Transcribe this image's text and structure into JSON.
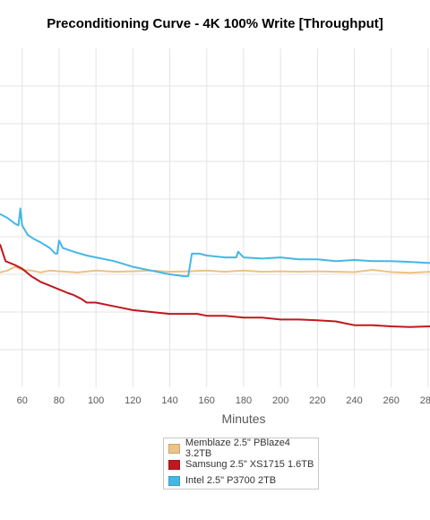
{
  "chart_data": {
    "type": "line",
    "title": "Preconditioning Curve - 4K 100% Write [Throughput]",
    "xlabel": "Minutes",
    "ylabel": "",
    "x_ticks": [
      60,
      80,
      100,
      120,
      140,
      160,
      180,
      200,
      220,
      240,
      260,
      280
    ],
    "xlim": [
      48,
      281
    ],
    "ylim": [
      0,
      9
    ],
    "grid": true,
    "legend_position": "bottom-center",
    "series": [
      {
        "name": "Memblaze 2.5\" PBlaze4 3.2TB",
        "color": "#eec184",
        "points": [
          [
            48,
            3.05
          ],
          [
            52,
            3.1
          ],
          [
            56,
            3.2
          ],
          [
            60,
            3.12
          ],
          [
            65,
            3.1
          ],
          [
            70,
            3.05
          ],
          [
            75,
            3.1
          ],
          [
            80,
            3.08
          ],
          [
            90,
            3.05
          ],
          [
            100,
            3.1
          ],
          [
            110,
            3.07
          ],
          [
            120,
            3.08
          ],
          [
            130,
            3.1
          ],
          [
            140,
            3.07
          ],
          [
            150,
            3.08
          ],
          [
            160,
            3.1
          ],
          [
            170,
            3.07
          ],
          [
            180,
            3.1
          ],
          [
            190,
            3.07
          ],
          [
            200,
            3.08
          ],
          [
            210,
            3.07
          ],
          [
            220,
            3.08
          ],
          [
            230,
            3.07
          ],
          [
            240,
            3.06
          ],
          [
            250,
            3.12
          ],
          [
            260,
            3.06
          ],
          [
            270,
            3.04
          ],
          [
            281,
            3.07
          ]
        ]
      },
      {
        "name": "Samsung 2.5\" XS1715 1.6TB",
        "color": "#c0181e",
        "points": [
          [
            48,
            3.8
          ],
          [
            51,
            3.35
          ],
          [
            56,
            3.25
          ],
          [
            60,
            3.15
          ],
          [
            65,
            2.95
          ],
          [
            70,
            2.8
          ],
          [
            75,
            2.7
          ],
          [
            80,
            2.6
          ],
          [
            85,
            2.5
          ],
          [
            88,
            2.45
          ],
          [
            92,
            2.35
          ],
          [
            95,
            2.25
          ],
          [
            100,
            2.25
          ],
          [
            110,
            2.15
          ],
          [
            120,
            2.05
          ],
          [
            130,
            2.0
          ],
          [
            140,
            1.95
          ],
          [
            150,
            1.95
          ],
          [
            155,
            1.95
          ],
          [
            160,
            1.9
          ],
          [
            170,
            1.9
          ],
          [
            180,
            1.85
          ],
          [
            190,
            1.85
          ],
          [
            200,
            1.8
          ],
          [
            210,
            1.8
          ],
          [
            220,
            1.78
          ],
          [
            230,
            1.75
          ],
          [
            235,
            1.7
          ],
          [
            240,
            1.65
          ],
          [
            250,
            1.65
          ],
          [
            260,
            1.62
          ],
          [
            270,
            1.6
          ],
          [
            281,
            1.62
          ]
        ]
      },
      {
        "name": "Intel 2.5\" P3700 2TB",
        "color": "#45b7e4",
        "points": [
          [
            48,
            4.6
          ],
          [
            52,
            4.5
          ],
          [
            56,
            4.35
          ],
          [
            58,
            4.3
          ],
          [
            59,
            4.75
          ],
          [
            60,
            4.3
          ],
          [
            63,
            4.05
          ],
          [
            66,
            3.95
          ],
          [
            70,
            3.85
          ],
          [
            75,
            3.7
          ],
          [
            78,
            3.55
          ],
          [
            79,
            3.55
          ],
          [
            80,
            3.9
          ],
          [
            82,
            3.7
          ],
          [
            88,
            3.6
          ],
          [
            95,
            3.5
          ],
          [
            100,
            3.45
          ],
          [
            110,
            3.35
          ],
          [
            120,
            3.2
          ],
          [
            130,
            3.1
          ],
          [
            140,
            3.0
          ],
          [
            148,
            2.95
          ],
          [
            150,
            2.95
          ],
          [
            152,
            3.55
          ],
          [
            156,
            3.55
          ],
          [
            160,
            3.5
          ],
          [
            170,
            3.45
          ],
          [
            176,
            3.45
          ],
          [
            177,
            3.6
          ],
          [
            180,
            3.45
          ],
          [
            190,
            3.42
          ],
          [
            200,
            3.45
          ],
          [
            210,
            3.4
          ],
          [
            220,
            3.4
          ],
          [
            230,
            3.35
          ],
          [
            240,
            3.38
          ],
          [
            250,
            3.35
          ],
          [
            260,
            3.35
          ],
          [
            270,
            3.33
          ],
          [
            281,
            3.3
          ]
        ]
      }
    ]
  }
}
